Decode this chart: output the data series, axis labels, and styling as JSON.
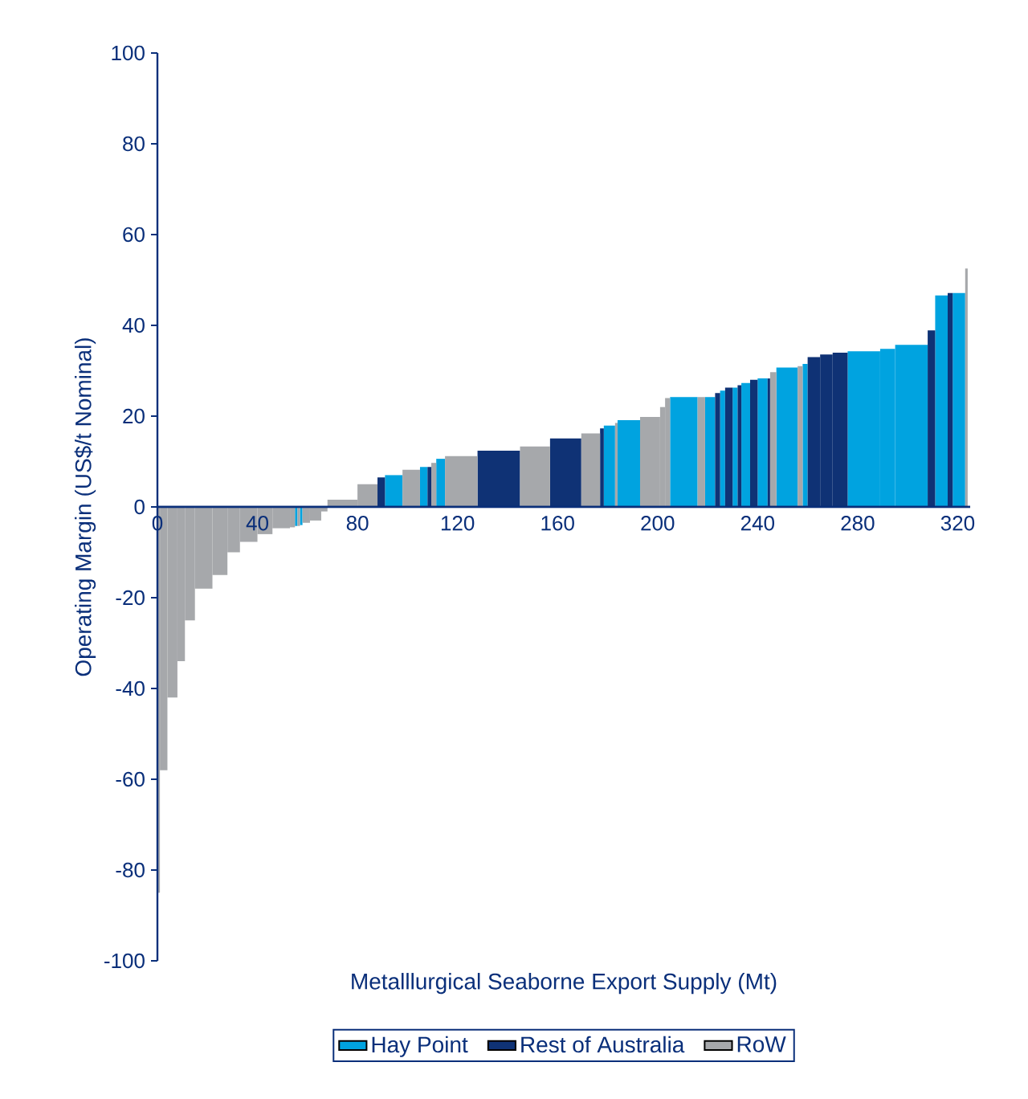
{
  "chart_data": {
    "type": "bar",
    "xlabel": "Metalllurgical Seaborne Export Supply (Mt)",
    "ylabel": "Operating Margin (US$/t Nominal)",
    "xlim": [
      0,
      325
    ],
    "xticks": [
      0,
      40,
      80,
      120,
      160,
      200,
      240,
      280,
      320
    ],
    "ylim": [
      -100,
      100
    ],
    "yticks": [
      -100,
      -80,
      -60,
      -40,
      -20,
      0,
      20,
      40,
      60,
      80,
      100
    ],
    "legend": "bottom",
    "grid": false,
    "series": [
      {
        "name": "Hay Point",
        "color": "#00a3e0",
        "x": [
          55.5,
          57.5,
          94.5,
          106.5,
          113.25,
          180.75,
          188.5,
          210.5,
          221,
          226,
          231,
          235.25,
          242,
          251.75,
          259,
          282.5,
          292,
          301.5,
          313.5,
          320.5
        ],
        "values": [
          -4.2,
          -4,
          7,
          8.8,
          10.6,
          17.9,
          19.1,
          24.2,
          24.2,
          25.6,
          26.3,
          27.3,
          28.3,
          30.7,
          31.5,
          34.3,
          34.8,
          35.7,
          46.6,
          47.1
        ]
      },
      {
        "name": "Rest of Australia",
        "color": "#0f3275",
        "x": [
          89.5,
          108.75,
          136.5,
          163.25,
          177.75,
          224,
          228.5,
          232.75,
          238.5,
          244.5,
          262.5,
          267.5,
          273,
          309.5,
          317
        ],
        "values": [
          6.5,
          8.8,
          12.4,
          15.1,
          17.3,
          25.1,
          26.3,
          26.8,
          28,
          28.3,
          33,
          33.6,
          34,
          38.9,
          47.1
        ]
      },
      {
        "name": "RoW",
        "color": "#a6a8ab",
        "x": [
          0.5,
          2.5,
          6,
          9.5,
          13,
          18.5,
          25,
          30.5,
          36.5,
          43,
          49.5,
          54,
          56.5,
          59.5,
          63.25,
          66.75,
          74,
          84,
          101.5,
          110.5,
          121.5,
          151,
          173.25,
          183.5,
          197,
          202,
          204,
          217.5,
          246.25,
          257,
          323.5
        ],
        "values": [
          -85,
          -58,
          -42,
          -34,
          -25,
          -18,
          -15,
          -10,
          -7.7,
          -6,
          -4.7,
          -4.5,
          -4.2,
          -3.5,
          -3,
          -1,
          1.6,
          5,
          8.2,
          9.7,
          11.2,
          13.3,
          16.2,
          18.5,
          19.8,
          22,
          24,
          24.2,
          29.7,
          31,
          52.5
        ]
      }
    ]
  }
}
